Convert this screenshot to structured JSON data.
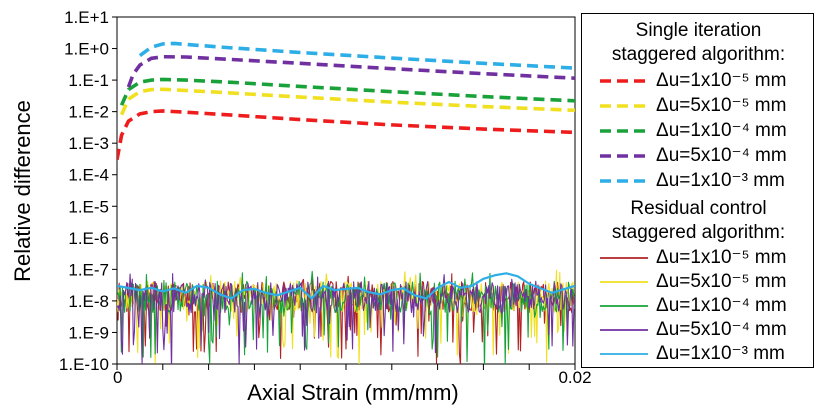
{
  "chart_data": {
    "type": "line",
    "xlabel": "Axial Strain (mm/mm)",
    "ylabel": "Relative difference",
    "xlim": [
      0,
      0.02
    ],
    "ylim": [
      1e-10,
      10
    ],
    "y_scale": "log",
    "x_tick_labels": [
      "0",
      "0.02"
    ],
    "y_tick_labels": [
      "1.E+1",
      "1.E+0",
      "1.E-1",
      "1.E-2",
      "1.E-3",
      "1.E-4",
      "1.E-5",
      "1.E-6",
      "1.E-7",
      "1.E-8",
      "1.E-9",
      "1.E-10"
    ],
    "grid": false,
    "legend": {
      "placement": "right",
      "group1_title_line1": "Single iteration",
      "group1_title_line2": "staggered algorithm:",
      "group2_title_line1": "Residual control",
      "group2_title_line2": "staggered algorithm:"
    },
    "series": [
      {
        "group": "single_iteration",
        "name": "Δu=1x10⁻⁵ mm",
        "style": "dashed",
        "color": "#ee1c1c",
        "points": [
          [
            0.0,
            0.0003
          ],
          [
            0.0002,
            0.0018
          ],
          [
            0.0005,
            0.005
          ],
          [
            0.001,
            0.0085
          ],
          [
            0.0015,
            0.01
          ],
          [
            0.002,
            0.0105
          ],
          [
            0.003,
            0.0096
          ],
          [
            0.005,
            0.0078
          ],
          [
            0.008,
            0.0056
          ],
          [
            0.012,
            0.0038
          ],
          [
            0.016,
            0.0028
          ],
          [
            0.02,
            0.0022
          ]
        ]
      },
      {
        "group": "single_iteration",
        "name": "Δu=5x10⁻⁵ mm",
        "style": "dashed",
        "color": "#f0e020",
        "points": [
          [
            0.0002,
            0.008
          ],
          [
            0.0005,
            0.025
          ],
          [
            0.001,
            0.043
          ],
          [
            0.0015,
            0.05
          ],
          [
            0.002,
            0.051
          ],
          [
            0.003,
            0.047
          ],
          [
            0.005,
            0.039
          ],
          [
            0.008,
            0.029
          ],
          [
            0.012,
            0.02
          ],
          [
            0.016,
            0.0145
          ],
          [
            0.02,
            0.011
          ]
        ]
      },
      {
        "group": "single_iteration",
        "name": "Δu=1x10⁻⁴ mm",
        "style": "dashed",
        "color": "#1aa23a",
        "points": [
          [
            0.0002,
            0.016
          ],
          [
            0.0005,
            0.05
          ],
          [
            0.001,
            0.086
          ],
          [
            0.0015,
            0.1
          ],
          [
            0.002,
            0.105
          ],
          [
            0.003,
            0.1
          ],
          [
            0.005,
            0.085
          ],
          [
            0.008,
            0.063
          ],
          [
            0.012,
            0.043
          ],
          [
            0.016,
            0.03
          ],
          [
            0.02,
            0.022
          ]
        ]
      },
      {
        "group": "single_iteration",
        "name": "Δu=5x10⁻⁴ mm",
        "style": "dashed",
        "color": "#7030a0",
        "points": [
          [
            0.0005,
            0.06
          ],
          [
            0.0007,
            0.15
          ],
          [
            0.001,
            0.3
          ],
          [
            0.0015,
            0.49
          ],
          [
            0.002,
            0.55
          ],
          [
            0.003,
            0.54
          ],
          [
            0.005,
            0.45
          ],
          [
            0.008,
            0.34
          ],
          [
            0.012,
            0.23
          ],
          [
            0.016,
            0.16
          ],
          [
            0.02,
            0.115
          ]
        ]
      },
      {
        "group": "single_iteration",
        "name": "Δu=1x10⁻³ mm",
        "style": "dashed",
        "color": "#2eaee6",
        "points": [
          [
            0.001,
            0.6
          ],
          [
            0.0015,
            1.1
          ],
          [
            0.002,
            1.4
          ],
          [
            0.0025,
            1.45
          ],
          [
            0.003,
            1.35
          ],
          [
            0.005,
            1.05
          ],
          [
            0.008,
            0.75
          ],
          [
            0.012,
            0.5
          ],
          [
            0.016,
            0.34
          ],
          [
            0.02,
            0.24
          ]
        ]
      },
      {
        "group": "residual_control",
        "name": "Δu=1x10⁻⁵ mm",
        "style": "solid",
        "color": "#b22222",
        "noise": true,
        "base": 1.5e-08
      },
      {
        "group": "residual_control",
        "name": "Δu=5x10⁻⁵ mm",
        "style": "solid",
        "color": "#f0e020",
        "noise": true,
        "base": 1.5e-08
      },
      {
        "group": "residual_control",
        "name": "Δu=1x10⁻⁴ mm",
        "style": "solid",
        "color": "#1aa23a",
        "noise": true,
        "base": 1.5e-08
      },
      {
        "group": "residual_control",
        "name": "Δu=5x10⁻⁴ mm",
        "style": "solid",
        "color": "#7030a0",
        "noise": true,
        "base": 1.5e-08
      },
      {
        "group": "residual_control",
        "name": "Δu=1x10⁻³ mm",
        "style": "solid",
        "color": "#2eaee6",
        "points": [
          [
            0.0,
            3e-08
          ],
          [
            0.001,
            2.2e-08
          ],
          [
            0.0015,
            2.6e-08
          ],
          [
            0.002,
            2e-08
          ],
          [
            0.0025,
            2.5e-08
          ],
          [
            0.003,
            1.8e-08
          ],
          [
            0.0035,
            3e-08
          ],
          [
            0.004,
            2.6e-08
          ],
          [
            0.0045,
            1.6e-08
          ],
          [
            0.005,
            1.2e-08
          ],
          [
            0.0055,
            2.2e-08
          ],
          [
            0.006,
            2.4e-08
          ],
          [
            0.0065,
            1.8e-08
          ],
          [
            0.007,
            1.5e-08
          ],
          [
            0.008,
            2.6e-08
          ],
          [
            0.0085,
            1.2e-08
          ],
          [
            0.009,
            3e-08
          ],
          [
            0.0095,
            2.2e-08
          ],
          [
            0.01,
            2.4e-08
          ],
          [
            0.0105,
            2.6e-08
          ],
          [
            0.011,
            1.9e-08
          ],
          [
            0.0115,
            1.6e-08
          ],
          [
            0.012,
            2.2e-08
          ],
          [
            0.0125,
            2.5e-08
          ],
          [
            0.013,
            1.5e-08
          ],
          [
            0.0135,
            1.2e-08
          ],
          [
            0.014,
            2.6e-08
          ],
          [
            0.0145,
            4e-08
          ],
          [
            0.015,
            2.6e-08
          ],
          [
            0.0155,
            3e-08
          ],
          [
            0.016,
            5e-08
          ],
          [
            0.0165,
            6.5e-08
          ],
          [
            0.017,
            7.5e-08
          ],
          [
            0.0175,
            6e-08
          ],
          [
            0.018,
            3.5e-08
          ],
          [
            0.019,
            1.8e-08
          ],
          [
            0.02,
            3e-08
          ]
        ]
      }
    ]
  }
}
